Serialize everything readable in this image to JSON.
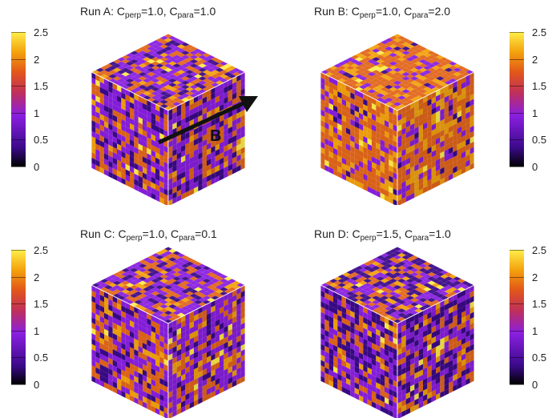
{
  "colorbar": {
    "ticks": [
      "2.5",
      "2",
      "1.5",
      "1",
      "0.5",
      "0"
    ]
  },
  "panels": [
    {
      "run": "Run A: ",
      "c1": "C",
      "c1_sub": "perp",
      "c1_val": "=1.0, ",
      "c2": "C",
      "c2_sub": "para",
      "c2_val": "=1.0"
    },
    {
      "run": "Run B: ",
      "c1": "C",
      "c1_sub": "perp",
      "c1_val": "=1.0, ",
      "c2": "C",
      "c2_sub": "para",
      "c2_val": "=2.0"
    },
    {
      "run": "Run C: ",
      "c1": "C",
      "c1_sub": "perp",
      "c1_val": "=1.0, ",
      "c2": "C",
      "c2_sub": "para",
      "c2_val": "=0.1"
    },
    {
      "run": "Run D: ",
      "c1": "C",
      "c1_sub": "perp",
      "c1_val": "=1.5, ",
      "c2": "C",
      "c2_sub": "para",
      "c2_val": "=1.0"
    }
  ],
  "field_label": "B",
  "colors": {
    "black": "#000000",
    "dark_purple": "#3b0a8a",
    "purple": "#8a1fe0",
    "red_orange": "#c8401e",
    "orange": "#e2661a",
    "amber": "#f3a20c",
    "yellow": "#ffee4a"
  }
}
